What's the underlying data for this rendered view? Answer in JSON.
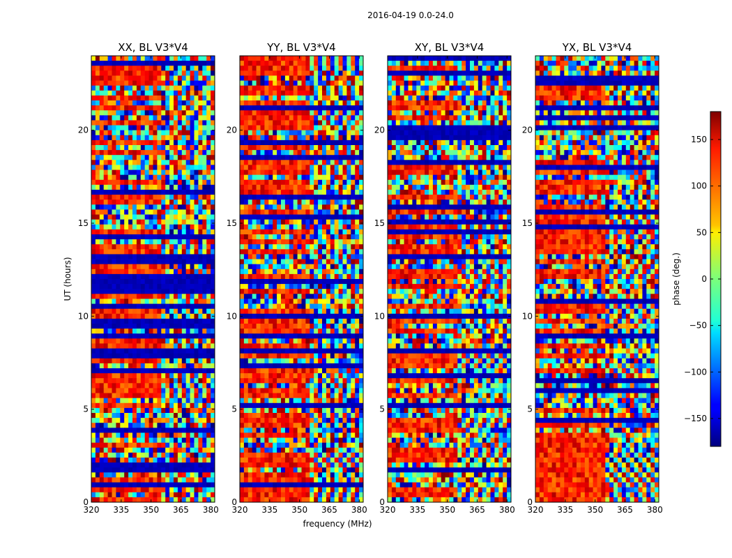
{
  "figure": {
    "suptitle": "2016-04-19 0.0-24.0"
  },
  "chart_data": [
    {
      "type": "heatmap",
      "title": "XX, BL V3*V4",
      "xlabel": "",
      "ylabel": "UT (hours)",
      "xlim": [
        320,
        382
      ],
      "ylim": [
        0,
        24
      ],
      "xticks": [
        "320",
        "335",
        "350",
        "365",
        "380"
      ],
      "yticks": [
        "0",
        "5",
        "10",
        "15",
        "20"
      ],
      "colorscale": "jet",
      "value": "phase (deg.)"
    },
    {
      "type": "heatmap",
      "title": "YY, BL V3*V4",
      "xlabel": "frequency (MHz)",
      "ylabel": "",
      "xlim": [
        320,
        382
      ],
      "ylim": [
        0,
        24
      ],
      "xticks": [
        "320",
        "335",
        "350",
        "365",
        "380"
      ],
      "yticks": [
        "0",
        "5",
        "10",
        "15",
        "20"
      ],
      "colorscale": "jet",
      "value": "phase (deg.)"
    },
    {
      "type": "heatmap",
      "title": "XY, BL V3*V4",
      "xlabel": "",
      "ylabel": "",
      "xlim": [
        320,
        382
      ],
      "ylim": [
        0,
        24
      ],
      "xticks": [
        "320",
        "335",
        "350",
        "365",
        "380"
      ],
      "yticks": [
        "0",
        "5",
        "10",
        "15",
        "20"
      ],
      "colorscale": "jet",
      "value": "phase (deg.)"
    },
    {
      "type": "heatmap",
      "title": "YX, BL V3*V4",
      "xlabel": "",
      "ylabel": "",
      "xlim": [
        320,
        382
      ],
      "ylim": [
        0,
        24
      ],
      "xticks": [
        "320",
        "335",
        "350",
        "365",
        "380"
      ],
      "yticks": [
        "0",
        "5",
        "10",
        "15",
        "20"
      ],
      "colorscale": "jet",
      "value": "phase (deg.)"
    }
  ],
  "colorbar": {
    "label": "phase (deg.)",
    "range": [
      -180,
      180
    ],
    "ticks": [
      "150",
      "100",
      "50",
      "0",
      "−50",
      "−100",
      "−150"
    ],
    "tick_values": [
      150,
      100,
      50,
      0,
      -50,
      -100,
      -150
    ]
  }
}
